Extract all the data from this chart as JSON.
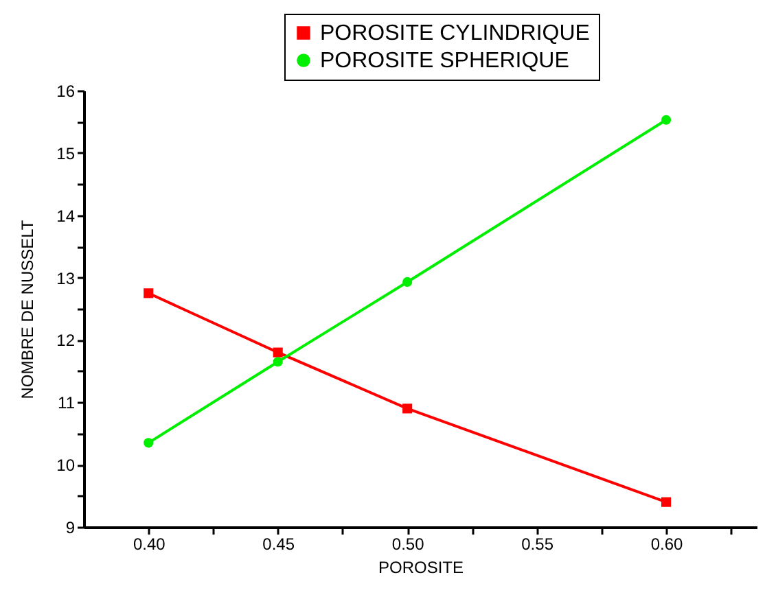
{
  "chart_data": {
    "type": "line",
    "xlabel": "POROSITE",
    "ylabel": "NOMBRE DE NUSSELT",
    "x": [
      0.4,
      0.45,
      0.5,
      0.6
    ],
    "series": [
      {
        "name": "POROSITE CYLINDRIQUE",
        "color": "#ff0000",
        "marker": "square",
        "values": [
          12.75,
          11.8,
          10.9,
          9.4
        ]
      },
      {
        "name": "POROSITE SPHERIQUE",
        "color": "#00ee00",
        "marker": "circle",
        "values": [
          10.35,
          11.65,
          12.93,
          15.53
        ]
      }
    ],
    "xlim": [
      0.375,
      0.635
    ],
    "xticks": [
      {
        "value": 0.4,
        "label": "0.40"
      },
      {
        "value": 0.425,
        "label": null
      },
      {
        "value": 0.45,
        "label": "0.45"
      },
      {
        "value": 0.475,
        "label": null
      },
      {
        "value": 0.5,
        "label": "0.50"
      },
      {
        "value": 0.525,
        "label": null
      },
      {
        "value": 0.55,
        "label": "0.55"
      },
      {
        "value": 0.575,
        "label": null
      },
      {
        "value": 0.6,
        "label": "0.60"
      },
      {
        "value": 0.625,
        "label": null
      }
    ],
    "ylim": [
      9,
      16
    ],
    "yticks": [
      9,
      {
        "value": 9.5,
        "label": null
      },
      10,
      {
        "value": 10.5,
        "label": null
      },
      11,
      {
        "value": 11.5,
        "label": null
      },
      12,
      {
        "value": 12.5,
        "label": null
      },
      13,
      {
        "value": 13.5,
        "label": null
      },
      14,
      {
        "value": 14.5,
        "label": null
      },
      15,
      {
        "value": 15.5,
        "label": null
      },
      16
    ],
    "grid": false,
    "legend": "top right",
    "line_style": "solid"
  }
}
